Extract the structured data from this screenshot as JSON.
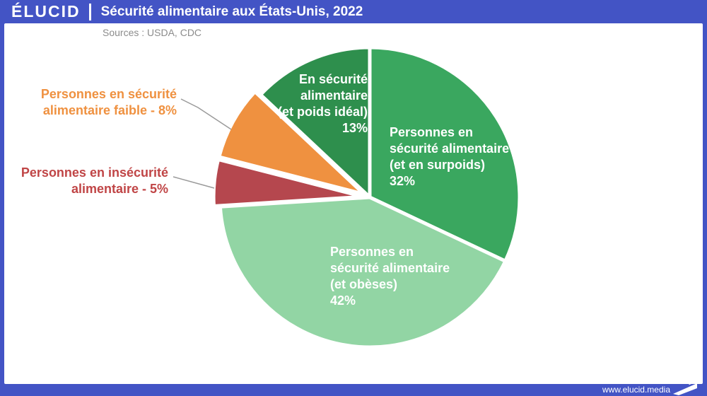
{
  "header": {
    "brand": "ÉLUCID",
    "title": "Sécurité alimentaire aux États-Unis, 2022"
  },
  "sources": "Sources : USDA, CDC",
  "footer": {
    "url": "www.elucid.media"
  },
  "colors": {
    "frame_blue": "#4354c5",
    "dark_green": "#2e8f4d",
    "medium_green": "#3aa75f",
    "light_green": "#92d5a4",
    "orange": "#ef9140",
    "red": "#b5474e",
    "orange_text": "#ef9140",
    "red_text": "#c04546",
    "sources_gray": "#8c8c8c",
    "leader_line_gray": "#9a9a9a"
  },
  "chart_data": {
    "type": "pie",
    "title": "Sécurité alimentaire aux États-Unis, 2022",
    "unit": "%",
    "start_angle_deg": 0,
    "direction": "clockwise",
    "legend_position": "none",
    "slices": [
      {
        "id": "surpoids",
        "label": "Personnes en sécurité alimentaire (et en surpoids)",
        "value": 32,
        "color": "#3aa75f",
        "exploded": false,
        "label_placement": "inside",
        "label_lines": [
          "Personnes en",
          "sécurité alimentaire",
          "(et en surpoids)",
          "32%"
        ]
      },
      {
        "id": "obeses",
        "label": "Personnes en sécurité alimentaire (et obèses)",
        "value": 42,
        "color": "#92d5a4",
        "exploded": false,
        "label_placement": "inside",
        "label_lines": [
          "Personnes en",
          "sécurité alimentaire",
          "(et obèses)",
          "42%"
        ]
      },
      {
        "id": "insecurite",
        "label": "Personnes en insécurité alimentaire",
        "value": 5,
        "color": "#b5474e",
        "exploded": true,
        "label_placement": "outside-left",
        "label_lines": [
          "Personnes en insécurité",
          "alimentaire - 5%"
        ]
      },
      {
        "id": "faible",
        "label": "Personnes en sécurité alimentaire faible",
        "value": 8,
        "color": "#ef9140",
        "exploded": true,
        "label_placement": "outside-left",
        "label_lines": [
          "Personnes en sécurité",
          "alimentaire faible - 8%"
        ]
      },
      {
        "id": "poids-ideal",
        "label": "En sécurité alimentaire (et poids idéal)",
        "value": 13,
        "color": "#2e8f4d",
        "exploded": false,
        "label_placement": "inside",
        "label_lines": [
          "En sécurité",
          "alimentaire",
          "(et poids idéal)",
          "13%"
        ]
      }
    ]
  }
}
